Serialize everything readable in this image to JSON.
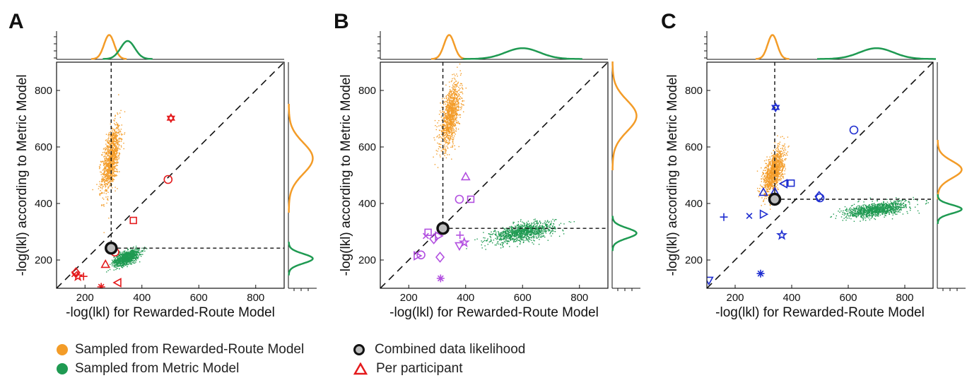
{
  "colors": {
    "reward_model": "#F39C28",
    "metric_model": "#1F9A52",
    "participant_A": "#E41A1C",
    "participant_B": "#B24FE0",
    "participant_C": "#1F2ED0",
    "combined_fill": "#BDBDBD"
  },
  "legend": {
    "reward_label": "Sampled from Rewarded-Route Model",
    "metric_label": "Sampled from Metric Model",
    "combined_label": "Combined data likelihood",
    "participant_label": "Per participant"
  },
  "chart_data": [
    {
      "panel": "A",
      "type": "scatter",
      "xlabel": "-log(lkl) for Rewarded-Route Model",
      "ylabel": "-log(lkl) according to Metric Model",
      "xlim": [
        100,
        900
      ],
      "ylim": [
        100,
        900
      ],
      "xticks": [
        200,
        400,
        600,
        800
      ],
      "yticks": [
        200,
        400,
        600,
        800
      ],
      "identity_line": true,
      "reward_cloud": {
        "cx": 290,
        "cy": 560,
        "sx": 16,
        "sy": 60,
        "rho": 0.55
      },
      "metric_cloud": {
        "cx": 345,
        "cy": 210,
        "sx": 22,
        "sy": 14,
        "rho": 0.6
      },
      "combined": {
        "x": 292,
        "y": 242
      },
      "participants": [
        {
          "x": 502,
          "y": 702,
          "marker": "hexagram"
        },
        {
          "x": 492,
          "y": 485,
          "marker": "circle"
        },
        {
          "x": 370,
          "y": 340,
          "marker": "square"
        },
        {
          "x": 305,
          "y": 228,
          "marker": "circle"
        },
        {
          "x": 272,
          "y": 185,
          "marker": "triangle-up"
        },
        {
          "x": 315,
          "y": 120,
          "marker": "triangle-left"
        },
        {
          "x": 257,
          "y": 105,
          "marker": "asterisk"
        },
        {
          "x": 168,
          "y": 155,
          "marker": "diamond"
        },
        {
          "x": 175,
          "y": 142,
          "marker": "pentagram"
        },
        {
          "x": 163,
          "y": 150,
          "marker": "x"
        },
        {
          "x": 195,
          "y": 142,
          "marker": "plus"
        }
      ],
      "marginal_top": [
        {
          "center": 285,
          "sd": 18,
          "height": 1.0
        },
        {
          "center": 350,
          "sd": 25,
          "height": 0.75
        }
      ],
      "marginal_right": [
        {
          "center": 560,
          "sd": 55,
          "height": 1.0
        },
        {
          "center": 205,
          "sd": 17,
          "height": 1.0
        }
      ]
    },
    {
      "panel": "B",
      "type": "scatter",
      "xlabel": "-log(lkl) for Rewarded-Route Model",
      "ylabel": "-log(lkl) according to Metric Model",
      "xlim": [
        100,
        900
      ],
      "ylim": [
        100,
        900
      ],
      "xticks": [
        200,
        400,
        600,
        800
      ],
      "yticks": [
        200,
        400,
        600,
        800
      ],
      "identity_line": true,
      "reward_cloud": {
        "cx": 345,
        "cy": 710,
        "sx": 18,
        "sy": 55,
        "rho": 0.55
      },
      "metric_cloud": {
        "cx": 600,
        "cy": 300,
        "sx": 55,
        "sy": 18,
        "rho": 0.55
      },
      "combined": {
        "x": 320,
        "y": 312
      },
      "participants": [
        {
          "x": 400,
          "y": 495,
          "marker": "triangle-up"
        },
        {
          "x": 378,
          "y": 415,
          "marker": "circle"
        },
        {
          "x": 418,
          "y": 415,
          "marker": "square"
        },
        {
          "x": 288,
          "y": 275,
          "marker": "diamond"
        },
        {
          "x": 305,
          "y": 285,
          "marker": "triangle-right"
        },
        {
          "x": 268,
          "y": 298,
          "marker": "square"
        },
        {
          "x": 260,
          "y": 285,
          "marker": "x"
        },
        {
          "x": 380,
          "y": 288,
          "marker": "plus"
        },
        {
          "x": 395,
          "y": 262,
          "marker": "pentagram"
        },
        {
          "x": 378,
          "y": 250,
          "marker": "triangle-down"
        },
        {
          "x": 230,
          "y": 215,
          "marker": "triangle-right"
        },
        {
          "x": 243,
          "y": 218,
          "marker": "circle"
        },
        {
          "x": 310,
          "y": 210,
          "marker": "diamond"
        },
        {
          "x": 312,
          "y": 135,
          "marker": "asterisk"
        }
      ],
      "marginal_top": [
        {
          "center": 342,
          "sd": 18,
          "height": 1.0
        },
        {
          "center": 600,
          "sd": 60,
          "height": 0.45
        }
      ],
      "marginal_right": [
        {
          "center": 710,
          "sd": 55,
          "height": 1.0
        },
        {
          "center": 295,
          "sd": 18,
          "height": 1.0
        }
      ]
    },
    {
      "panel": "C",
      "type": "scatter",
      "xlabel": "-log(lkl) for Rewarded-Route Model",
      "ylabel": "-log(lkl) according to Metric Model",
      "xlim": [
        100,
        900
      ],
      "ylim": [
        100,
        900
      ],
      "xticks": [
        200,
        400,
        600,
        800
      ],
      "yticks": [
        200,
        400,
        600,
        800
      ],
      "identity_line": true,
      "reward_cloud": {
        "cx": 335,
        "cy": 515,
        "sx": 18,
        "sy": 40,
        "rho": 0.55
      },
      "metric_cloud": {
        "cx": 700,
        "cy": 380,
        "sx": 55,
        "sy": 14,
        "rho": 0.55
      },
      "combined": {
        "x": 340,
        "y": 415
      },
      "participants": [
        {
          "x": 343,
          "y": 740,
          "marker": "hexagram"
        },
        {
          "x": 620,
          "y": 660,
          "marker": "circle"
        },
        {
          "x": 398,
          "y": 472,
          "marker": "square"
        },
        {
          "x": 372,
          "y": 470,
          "marker": "triangle-left"
        },
        {
          "x": 300,
          "y": 440,
          "marker": "triangle-up"
        },
        {
          "x": 340,
          "y": 442,
          "marker": "triangle-up"
        },
        {
          "x": 497,
          "y": 425,
          "marker": "diamond"
        },
        {
          "x": 500,
          "y": 420,
          "marker": "circle"
        },
        {
          "x": 160,
          "y": 352,
          "marker": "plus"
        },
        {
          "x": 250,
          "y": 356,
          "marker": "x"
        },
        {
          "x": 300,
          "y": 362,
          "marker": "triangle-right"
        },
        {
          "x": 365,
          "y": 288,
          "marker": "pentagram"
        },
        {
          "x": 290,
          "y": 152,
          "marker": "asterisk"
        },
        {
          "x": 107,
          "y": 128,
          "marker": "triangle-down"
        }
      ],
      "marginal_top": [
        {
          "center": 332,
          "sd": 17,
          "height": 1.0
        },
        {
          "center": 700,
          "sd": 60,
          "height": 0.45
        }
      ],
      "marginal_right": [
        {
          "center": 520,
          "sd": 30,
          "height": 1.0
        },
        {
          "center": 380,
          "sd": 15,
          "height": 1.0
        }
      ]
    }
  ]
}
